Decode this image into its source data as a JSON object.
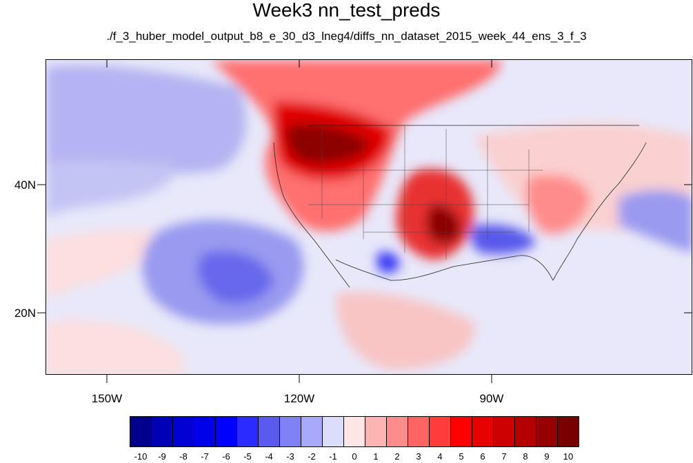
{
  "title": "Week3 nn_test_preds",
  "subtitle": "./f_3_huber_model_output_b8_e_30_d3_lneg4/diffs_nn_dataset_2015_week_44_ens_3_f_3",
  "lat_labels": [
    "40N",
    "20N"
  ],
  "lon_labels": [
    "150W",
    "120W",
    "90W"
  ],
  "colorbar": {
    "labels": [
      "-10",
      "-9",
      "-8",
      "-7",
      "-6",
      "-5",
      "-4",
      "-3",
      "-2",
      "-1",
      "0",
      "1",
      "2",
      "3",
      "4",
      "5",
      "6",
      "7",
      "8",
      "9",
      "10"
    ],
    "colors": [
      "#00008c",
      "#0000b4",
      "#0000d2",
      "#0000e8",
      "#0000ff",
      "#2b2bff",
      "#5a5af0",
      "#8080f5",
      "#a8a8f8",
      "#dcdcfc",
      "#ffe6e6",
      "#ffb4b4",
      "#ff8c8c",
      "#ff6464",
      "#ff3c3c",
      "#ff0000",
      "#e60000",
      "#cc0000",
      "#b40000",
      "#960000",
      "#780000"
    ]
  }
}
